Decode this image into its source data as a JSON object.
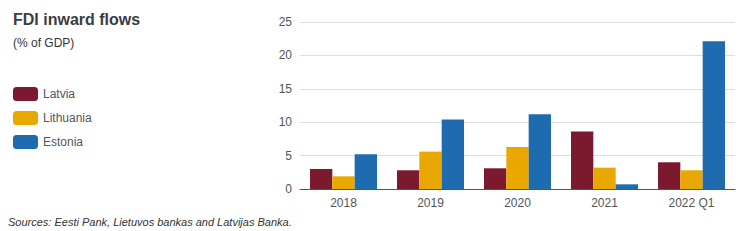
{
  "chart_data": {
    "type": "bar",
    "title": "FDI inward flows",
    "subtitle": "(% of GDP)",
    "categories": [
      "2018",
      "2019",
      "2020",
      "2021",
      "2022 Q1"
    ],
    "series": [
      {
        "name": "Latvia",
        "color": "#7b1a2e",
        "values": [
          3.0,
          2.8,
          3.1,
          8.6,
          4.0
        ]
      },
      {
        "name": "Lithuania",
        "color": "#e8a800",
        "values": [
          1.9,
          5.6,
          6.3,
          3.2,
          2.8
        ]
      },
      {
        "name": "Estonia",
        "color": "#1f6bb0",
        "values": [
          5.2,
          10.4,
          11.2,
          0.7,
          22.1
        ]
      }
    ],
    "ylim": [
      0,
      25
    ],
    "yticks": [
      0,
      5,
      10,
      15,
      20,
      25
    ],
    "grid": true,
    "legend": "left",
    "annotations": [
      "Sources: Eesti Pank, Lietuvos bankas and Latvijas Banka."
    ]
  }
}
